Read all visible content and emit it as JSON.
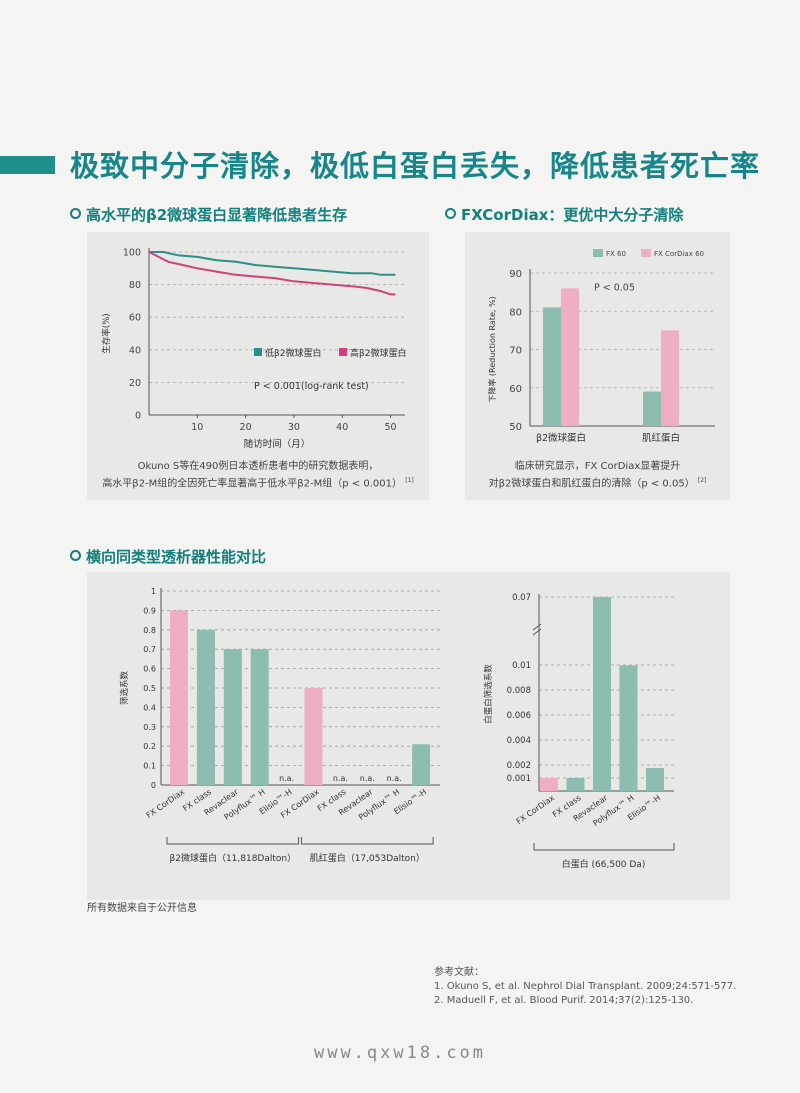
{
  "page": {
    "title": "极致中分子清除，极低白蛋白丢失，降低患者死亡率",
    "data_source_note": "所有数据来自于公开信息",
    "colors": {
      "accent": "#17868a",
      "teal": "#8dbcb0",
      "pink": "#eeaec3",
      "teal_line": "#2c8f86",
      "pink_line": "#d2407a"
    },
    "watermark": "www.qxw18.com"
  },
  "section1": {
    "title": "高水平的β2微球蛋白显著降低患者生存",
    "caption_line1": "Okuno S等在490例日本透析患者中的研究数据表明，",
    "caption_line2": "高水平β2-M组的全因死亡率显著高于低水平β2-M组（p < 0.001）",
    "caption_ref": "[1]"
  },
  "section2": {
    "title": "FXCorDiax：更优中大分子清除",
    "caption_line1": "临床研究显示，FX CorDiax显著提升",
    "caption_line2": "对β2微球蛋白和肌红蛋白的清除（p < 0.05）",
    "caption_ref": "[2]"
  },
  "section3": {
    "title": "横向同类型透析器性能对比"
  },
  "references": {
    "heading": "参考文献：",
    "items": [
      "1. Okuno S, et al. Nephrol Dial Transplant. 2009;24:571-577.",
      "2. Maduell F, et al. Blood Purif. 2014;37(2):125-130."
    ]
  },
  "chart_data": [
    {
      "type": "line",
      "ylabel": "生存率(%)",
      "xlabel": "随访时间（月）",
      "xlim": [
        0,
        53
      ],
      "ylim": [
        0,
        100
      ],
      "x_ticks": [
        10,
        20,
        30,
        40,
        50
      ],
      "y_ticks": [
        0,
        20,
        40,
        60,
        80,
        100
      ],
      "grid": "horizontal dashed",
      "annotation": "P < 0.001(log-rank test)",
      "legend_position": "middle-right",
      "series": [
        {
          "name": "低β2微球蛋白",
          "color": "#2c8f86",
          "points": [
            [
              0,
              100
            ],
            [
              3,
              100
            ],
            [
              6,
              98
            ],
            [
              10,
              97
            ],
            [
              14,
              95
            ],
            [
              18,
              94
            ],
            [
              22,
              92
            ],
            [
              26,
              91
            ],
            [
              30,
              90
            ],
            [
              34,
              89
            ],
            [
              38,
              88
            ],
            [
              42,
              87
            ],
            [
              46,
              87
            ],
            [
              48,
              86
            ],
            [
              50,
              86
            ],
            [
              51,
              86
            ]
          ]
        },
        {
          "name": "高β2微球蛋白",
          "color": "#d2407a",
          "points": [
            [
              0,
              100
            ],
            [
              2,
              97
            ],
            [
              4,
              94
            ],
            [
              7,
              92
            ],
            [
              10,
              90
            ],
            [
              14,
              88
            ],
            [
              18,
              86
            ],
            [
              22,
              85
            ],
            [
              26,
              84
            ],
            [
              30,
              82
            ],
            [
              34,
              81
            ],
            [
              38,
              80
            ],
            [
              42,
              79
            ],
            [
              45,
              78
            ],
            [
              48,
              76
            ],
            [
              50,
              74
            ],
            [
              51,
              74
            ]
          ]
        }
      ]
    },
    {
      "type": "bar",
      "ylabel": "下降率 (Reduction Rate, %)",
      "categories": [
        "β2微球蛋白",
        "肌红蛋白"
      ],
      "ylim": [
        50,
        90
      ],
      "y_ticks": [
        50,
        60,
        70,
        80,
        90
      ],
      "grid": "horizontal dashed",
      "annotation": "P < 0.05",
      "legend_position": "top",
      "series": [
        {
          "name": "FX 60",
          "color": "#8dbcb0",
          "values": [
            81,
            59
          ]
        },
        {
          "name": "FX CorDiax 60",
          "color": "#eeaec3",
          "values": [
            86,
            75
          ]
        }
      ]
    },
    {
      "type": "bar",
      "ylabel": "筛选系数",
      "ylim": [
        0,
        1
      ],
      "y_ticks": [
        0,
        0.1,
        0.2,
        0.3,
        0.4,
        0.5,
        0.6,
        0.7,
        0.8,
        0.9,
        1
      ],
      "grid": "horizontal dashed",
      "group_labels": [
        "β2微球蛋白（11,818Dalton）",
        "肌红蛋白（17,053Dalton）"
      ],
      "na_label": "n.a.",
      "bars": [
        {
          "label": "FX CorDiax",
          "value": 0.9,
          "color": "#eeaec3",
          "group": 0
        },
        {
          "label": "FX class",
          "value": 0.8,
          "color": "#8dbcb0",
          "group": 0
        },
        {
          "label": "Revaclear",
          "value": 0.7,
          "color": "#8dbcb0",
          "group": 0
        },
        {
          "label": "Polyflux™ H",
          "value": 0.7,
          "color": "#8dbcb0",
          "group": 0
        },
        {
          "label": "Elisio™-H",
          "value": null,
          "color": "#8dbcb0",
          "group": 0
        },
        {
          "label": "FX CorDiax",
          "value": 0.5,
          "color": "#eeaec3",
          "group": 1
        },
        {
          "label": "FX class",
          "value": null,
          "color": "#8dbcb0",
          "group": 1
        },
        {
          "label": "Revaclear",
          "value": null,
          "color": "#8dbcb0",
          "group": 1
        },
        {
          "label": "Polyflux™ H",
          "value": null,
          "color": "#8dbcb0",
          "group": 1
        },
        {
          "label": "Elisio™-H",
          "value": 0.21,
          "color": "#8dbcb0",
          "group": 1
        }
      ]
    },
    {
      "type": "bar",
      "ylabel": "白蛋白筛选系数",
      "y_ticks": [
        0.001,
        0.002,
        0.004,
        0.006,
        0.008,
        0.01,
        0.07
      ],
      "axis_break": "between 0.01 and 0.07",
      "grid": "horizontal dashed",
      "group_label": "白蛋白 (66,500 Da)",
      "bars": [
        {
          "label": "FX CorDiax",
          "value": 0.001,
          "color": "#eeaec3"
        },
        {
          "label": "FX class",
          "value": 0.001,
          "color": "#8dbcb0"
        },
        {
          "label": "Revaclear",
          "value": 0.07,
          "color": "#8dbcb0"
        },
        {
          "label": "Polyflux™ H",
          "value": 0.01,
          "color": "#8dbcb0"
        },
        {
          "label": "Elisio™-H",
          "value": 0.0018,
          "color": "#8dbcb0"
        }
      ]
    }
  ]
}
